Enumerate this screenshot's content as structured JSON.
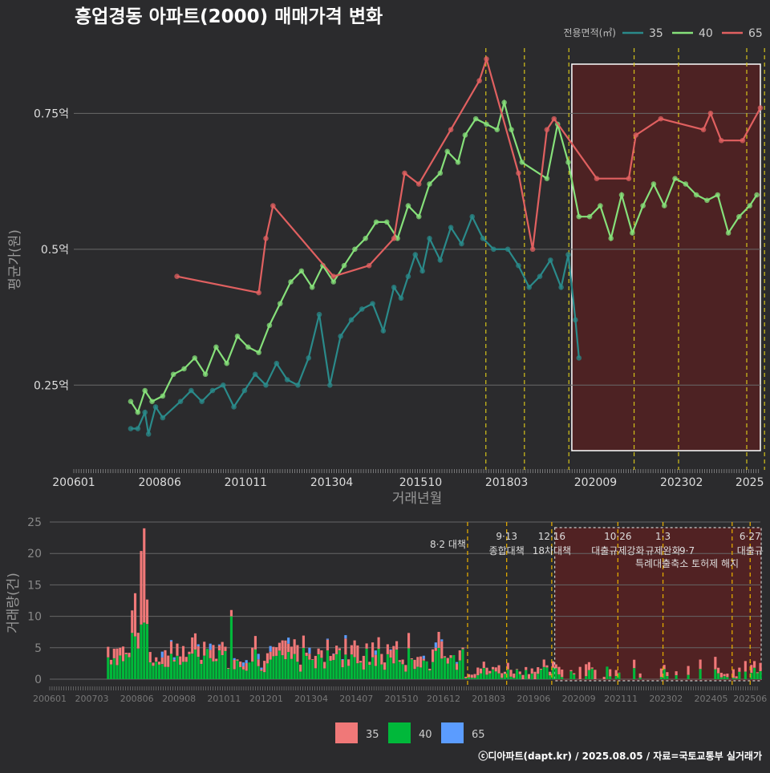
{
  "title": "흥업경동 아파트(2000) 매매가격 변화",
  "footer": "ⓒ디아파트(dapt.kr) / 2025.08.05 / 자료=국토교통부 실거래가",
  "colors": {
    "35": "#2a8a8a",
    "40": "#86e07a",
    "65": "#e06060",
    "bar35": "#f07878",
    "bar40": "#00b83a",
    "bar65": "#5b9cff",
    "policy": "#d4c21a",
    "highlight": "#6a1c1c"
  },
  "chart_data": [
    {
      "type": "line",
      "title": "흥업경동 아파트(2000) 매매가격 변화",
      "xlabel": "거래년월",
      "ylabel": "평균가(원)",
      "legend_title": "전용면적(㎡)",
      "legend_position": "top-right",
      "x_ticks": [
        "200601",
        "200806",
        "201011",
        "201304",
        "201510",
        "201803",
        "202009",
        "202302",
        "2025"
      ],
      "y_ticks": [
        "0.25억",
        "0.5억",
        "0.75억"
      ],
      "ylim": [
        0.1,
        0.87
      ],
      "highlight_start": "2020.01",
      "policy_lines": [
        "2017.08",
        "2018.09",
        "2019.12",
        "2021.10",
        "2023.01",
        "2024.12",
        "2025.06"
      ],
      "series": [
        {
          "name": "35",
          "points": [
            [
              2007.6,
              0.17
            ],
            [
              2007.8,
              0.17
            ],
            [
              2008.0,
              0.2
            ],
            [
              2008.1,
              0.16
            ],
            [
              2008.3,
              0.21
            ],
            [
              2008.5,
              0.19
            ],
            [
              2009.0,
              0.22
            ],
            [
              2009.3,
              0.24
            ],
            [
              2009.6,
              0.22
            ],
            [
              2009.9,
              0.24
            ],
            [
              2010.2,
              0.25
            ],
            [
              2010.5,
              0.21
            ],
            [
              2010.8,
              0.24
            ],
            [
              2011.1,
              0.27
            ],
            [
              2011.4,
              0.25
            ],
            [
              2011.7,
              0.29
            ],
            [
              2012.0,
              0.26
            ],
            [
              2012.3,
              0.25
            ],
            [
              2012.6,
              0.3
            ],
            [
              2012.9,
              0.38
            ],
            [
              2013.2,
              0.25
            ],
            [
              2013.5,
              0.34
            ],
            [
              2013.8,
              0.37
            ],
            [
              2014.1,
              0.39
            ],
            [
              2014.4,
              0.4
            ],
            [
              2014.7,
              0.35
            ],
            [
              2015.0,
              0.43
            ],
            [
              2015.2,
              0.41
            ],
            [
              2015.4,
              0.45
            ],
            [
              2015.6,
              0.49
            ],
            [
              2015.8,
              0.46
            ],
            [
              2016.0,
              0.52
            ],
            [
              2016.3,
              0.48
            ],
            [
              2016.6,
              0.54
            ],
            [
              2016.9,
              0.51
            ],
            [
              2017.2,
              0.56
            ],
            [
              2017.5,
              0.52
            ],
            [
              2017.8,
              0.5
            ],
            [
              2018.2,
              0.5
            ],
            [
              2018.5,
              0.47
            ],
            [
              2018.8,
              0.43
            ],
            [
              2019.1,
              0.45
            ],
            [
              2019.4,
              0.48
            ],
            [
              2019.7,
              0.43
            ],
            [
              2019.9,
              0.49
            ],
            [
              2020.1,
              0.37
            ],
            [
              2020.2,
              0.3
            ]
          ]
        },
        {
          "name": "40",
          "points": [
            [
              2007.6,
              0.22
            ],
            [
              2007.8,
              0.2
            ],
            [
              2008.0,
              0.24
            ],
            [
              2008.2,
              0.22
            ],
            [
              2008.5,
              0.23
            ],
            [
              2008.8,
              0.27
            ],
            [
              2009.1,
              0.28
            ],
            [
              2009.4,
              0.3
            ],
            [
              2009.7,
              0.27
            ],
            [
              2010.0,
              0.32
            ],
            [
              2010.3,
              0.29
            ],
            [
              2010.6,
              0.34
            ],
            [
              2010.9,
              0.32
            ],
            [
              2011.2,
              0.31
            ],
            [
              2011.5,
              0.36
            ],
            [
              2011.8,
              0.4
            ],
            [
              2012.1,
              0.44
            ],
            [
              2012.4,
              0.46
            ],
            [
              2012.7,
              0.43
            ],
            [
              2013.0,
              0.47
            ],
            [
              2013.3,
              0.44
            ],
            [
              2013.6,
              0.47
            ],
            [
              2013.9,
              0.5
            ],
            [
              2014.2,
              0.52
            ],
            [
              2014.5,
              0.55
            ],
            [
              2014.8,
              0.55
            ],
            [
              2015.1,
              0.52
            ],
            [
              2015.4,
              0.58
            ],
            [
              2015.7,
              0.56
            ],
            [
              2016.0,
              0.62
            ],
            [
              2016.3,
              0.64
            ],
            [
              2016.5,
              0.68
            ],
            [
              2016.8,
              0.66
            ],
            [
              2017.0,
              0.71
            ],
            [
              2017.3,
              0.74
            ],
            [
              2017.6,
              0.73
            ],
            [
              2017.9,
              0.72
            ],
            [
              2018.1,
              0.77
            ],
            [
              2018.3,
              0.72
            ],
            [
              2018.6,
              0.66
            ],
            [
              2019.3,
              0.63
            ],
            [
              2019.6,
              0.73
            ],
            [
              2019.9,
              0.66
            ],
            [
              2020.2,
              0.56
            ],
            [
              2020.5,
              0.56
            ],
            [
              2020.8,
              0.58
            ],
            [
              2021.1,
              0.52
            ],
            [
              2021.4,
              0.6
            ],
            [
              2021.7,
              0.53
            ],
            [
              2022.0,
              0.58
            ],
            [
              2022.3,
              0.62
            ],
            [
              2022.6,
              0.58
            ],
            [
              2022.9,
              0.63
            ],
            [
              2023.2,
              0.62
            ],
            [
              2023.5,
              0.6
            ],
            [
              2023.8,
              0.59
            ],
            [
              2024.1,
              0.6
            ],
            [
              2024.4,
              0.53
            ],
            [
              2024.7,
              0.56
            ],
            [
              2025.0,
              0.58
            ],
            [
              2025.2,
              0.6
            ]
          ]
        },
        {
          "name": "65",
          "points": [
            [
              2008.9,
              0.45
            ],
            [
              2011.2,
              0.42
            ],
            [
              2011.4,
              0.52
            ],
            [
              2011.6,
              0.58
            ],
            [
              2013.3,
              0.45
            ],
            [
              2014.3,
              0.47
            ],
            [
              2015.0,
              0.52
            ],
            [
              2015.3,
              0.64
            ],
            [
              2015.7,
              0.62
            ],
            [
              2016.6,
              0.72
            ],
            [
              2017.4,
              0.81
            ],
            [
              2017.6,
              0.85
            ],
            [
              2018.5,
              0.64
            ],
            [
              2018.9,
              0.5
            ],
            [
              2019.3,
              0.72
            ],
            [
              2019.5,
              0.74
            ],
            [
              2020.7,
              0.63
            ],
            [
              2021.6,
              0.63
            ],
            [
              2021.8,
              0.71
            ],
            [
              2022.5,
              0.74
            ],
            [
              2023.7,
              0.72
            ],
            [
              2023.9,
              0.75
            ],
            [
              2024.2,
              0.7
            ],
            [
              2024.8,
              0.7
            ],
            [
              2025.3,
              0.76
            ]
          ]
        }
      ]
    },
    {
      "type": "bar",
      "ylabel": "거래량(건)",
      "x_ticks": [
        "200601",
        "200703",
        "200806",
        "200908",
        "201011",
        "201201",
        "201304",
        "201407",
        "201510",
        "201612",
        "201803",
        "201906",
        "202009",
        "202111",
        "202302",
        "202405",
        "202506"
      ],
      "y_ticks": [
        "0",
        "5",
        "10",
        "15",
        "20",
        "25"
      ],
      "ylim": [
        0,
        25
      ],
      "policy_labels": [
        {
          "date": "2017.08",
          "line1": "8·2 대책",
          "line2": ""
        },
        {
          "date": "2018.09",
          "line1": "9·13",
          "line2": "종합대책"
        },
        {
          "date": "2019.12",
          "line1": "12·16",
          "line2": "18차대책"
        },
        {
          "date": "2021.10",
          "line1": "10·26",
          "line2": "대출규제강화"
        },
        {
          "date": "2023.01",
          "line1": "1·3",
          "line2": "규제완화"
        },
        {
          "date": "2023.09",
          "line1": "",
          "line2": "9·7"
        },
        {
          "date": "2023.09",
          "line1": "",
          "line2": "특례대출축소 토허제 해지"
        },
        {
          "date": "2025.06",
          "line1": "6·27",
          "line2": "대출규"
        }
      ],
      "legend": [
        "35",
        "40",
        "65"
      ]
    }
  ]
}
